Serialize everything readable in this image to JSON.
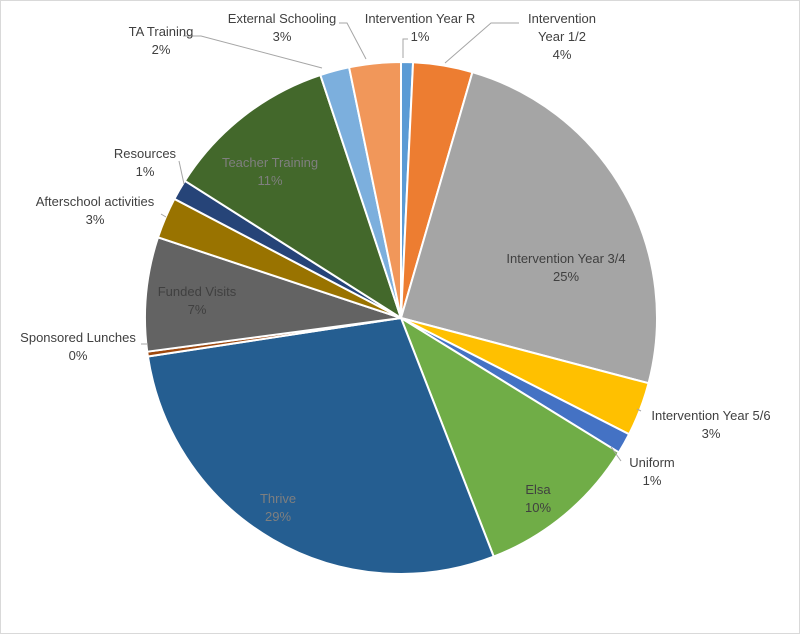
{
  "chart_data": {
    "type": "pie",
    "title": "",
    "slices": [
      {
        "label": "Intervention Year R",
        "percent_text": "1%",
        "value": 0.75,
        "color": "#5b9bd5"
      },
      {
        "label": "Intervention Year 1/2",
        "percent_text": "4%",
        "value": 3.75,
        "color": "#ed7d31"
      },
      {
        "label": "Intervention Year 3/4",
        "percent_text": "25%",
        "value": 24.6,
        "color": "#a5a5a5"
      },
      {
        "label": "Intervention Year 5/6",
        "percent_text": "3%",
        "value": 3.4,
        "color": "#ffc000"
      },
      {
        "label": "Uniform",
        "percent_text": "1%",
        "value": 1.3,
        "color": "#4472c4"
      },
      {
        "label": "Elsa",
        "percent_text": "10%",
        "value": 10.3,
        "color": "#70ad47"
      },
      {
        "label": "Thrive",
        "percent_text": "29%",
        "value": 28.5,
        "color": "#255e91"
      },
      {
        "label": "Sponsored Lunches",
        "percent_text": "0%",
        "value": 0.3,
        "color": "#9e480e"
      },
      {
        "label": "Funded Visits",
        "percent_text": "7%",
        "value": 7.2,
        "color": "#636363"
      },
      {
        "label": "Afterschool activities",
        "percent_text": "3%",
        "value": 2.6,
        "color": "#997300"
      },
      {
        "label": "Resources",
        "percent_text": "1%",
        "value": 1.3,
        "color": "#264478"
      },
      {
        "label": "Teacher Training",
        "percent_text": "11%",
        "value": 10.9,
        "color": "#43682b"
      },
      {
        "label": "TA Training",
        "percent_text": "2%",
        "value": 1.85,
        "color": "#7cafdd"
      },
      {
        "label": "External Schooling",
        "percent_text": "3%",
        "value": 3.25,
        "color": "#f1975a"
      }
    ]
  }
}
